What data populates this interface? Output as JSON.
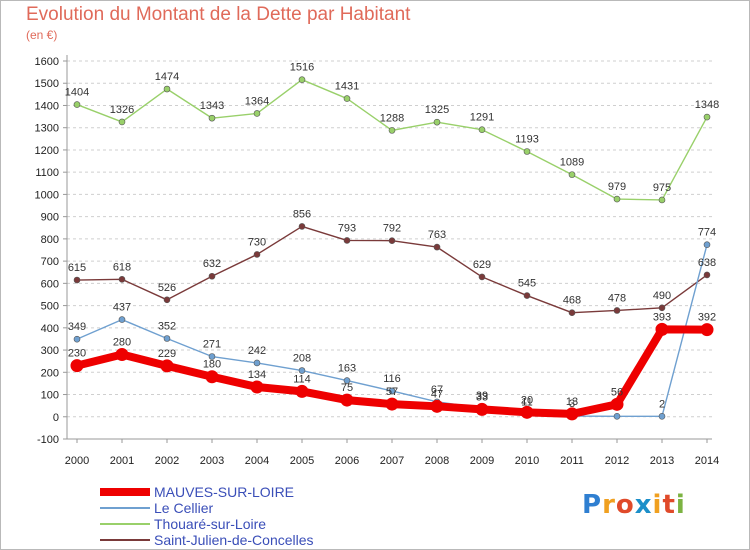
{
  "header": {
    "title": "Evolution du Montant de la Dette par Habitant",
    "unit": "(en €)"
  },
  "logo": {
    "text": "Proxiti",
    "colors": [
      "#2f7fd1",
      "#f0a020",
      "#e04a2a",
      "#1c8fc9",
      "#f0a020",
      "#e04a2a",
      "#7cb342"
    ]
  },
  "chart_data": {
    "type": "line",
    "x": [
      "2000",
      "2001",
      "2002",
      "2003",
      "2004",
      "2005",
      "2006",
      "2007",
      "2008",
      "2009",
      "2010",
      "2011",
      "2012",
      "2013",
      "2014"
    ],
    "ylim": [
      -100,
      1600
    ],
    "yticks": [
      "-100",
      "0",
      "100",
      "200",
      "300",
      "400",
      "500",
      "600",
      "700",
      "800",
      "900",
      "1000",
      "1100",
      "1200",
      "1300",
      "1400",
      "1500",
      "1600"
    ],
    "grid": "horizontal dashed",
    "legend_position": "bottom-left",
    "series": [
      {
        "name": "MAUVES-SUR-LOIRE",
        "color": "#ee0000",
        "values": [
          230,
          280,
          229,
          180,
          134,
          114,
          75,
          57,
          47,
          33,
          20,
          13,
          56,
          393,
          392
        ],
        "labels": [
          "230",
          "280",
          "229",
          "180",
          "134",
          "114",
          "75",
          "57",
          "47",
          "33",
          "20",
          "13",
          "56",
          "393",
          "392"
        ]
      },
      {
        "name": "Le Cellier",
        "color": "#6fa0d0",
        "values": [
          349,
          437,
          352,
          271,
          242,
          208,
          163,
          116,
          67,
          39,
          11,
          3,
          2,
          2,
          774
        ],
        "labels": [
          "349",
          "437",
          "352",
          "271",
          "242",
          "208",
          "163",
          "116",
          "67",
          "39",
          "11",
          "3",
          "",
          "2",
          "774"
        ]
      },
      {
        "name": "Thouaré-sur-Loire",
        "color": "#99d06a",
        "values": [
          1404,
          1326,
          1474,
          1343,
          1364,
          1516,
          1431,
          1288,
          1325,
          1291,
          1193,
          1089,
          979,
          975,
          1348
        ],
        "labels": [
          "1404",
          "1326",
          "1474",
          "1343",
          "1364",
          "1516",
          "1431",
          "1288",
          "1325",
          "1291",
          "1193",
          "1089",
          "979",
          "975",
          "1348"
        ]
      },
      {
        "name": "Saint-Julien-de-Concelles",
        "color": "#7a3a3a",
        "values": [
          615,
          618,
          526,
          632,
          730,
          856,
          793,
          792,
          763,
          629,
          545,
          468,
          478,
          490,
          638
        ],
        "labels": [
          "615",
          "618",
          "526",
          "632",
          "730",
          "856",
          "793",
          "792",
          "763",
          "629",
          "545",
          "468",
          "478",
          "490",
          "638"
        ]
      }
    ]
  }
}
